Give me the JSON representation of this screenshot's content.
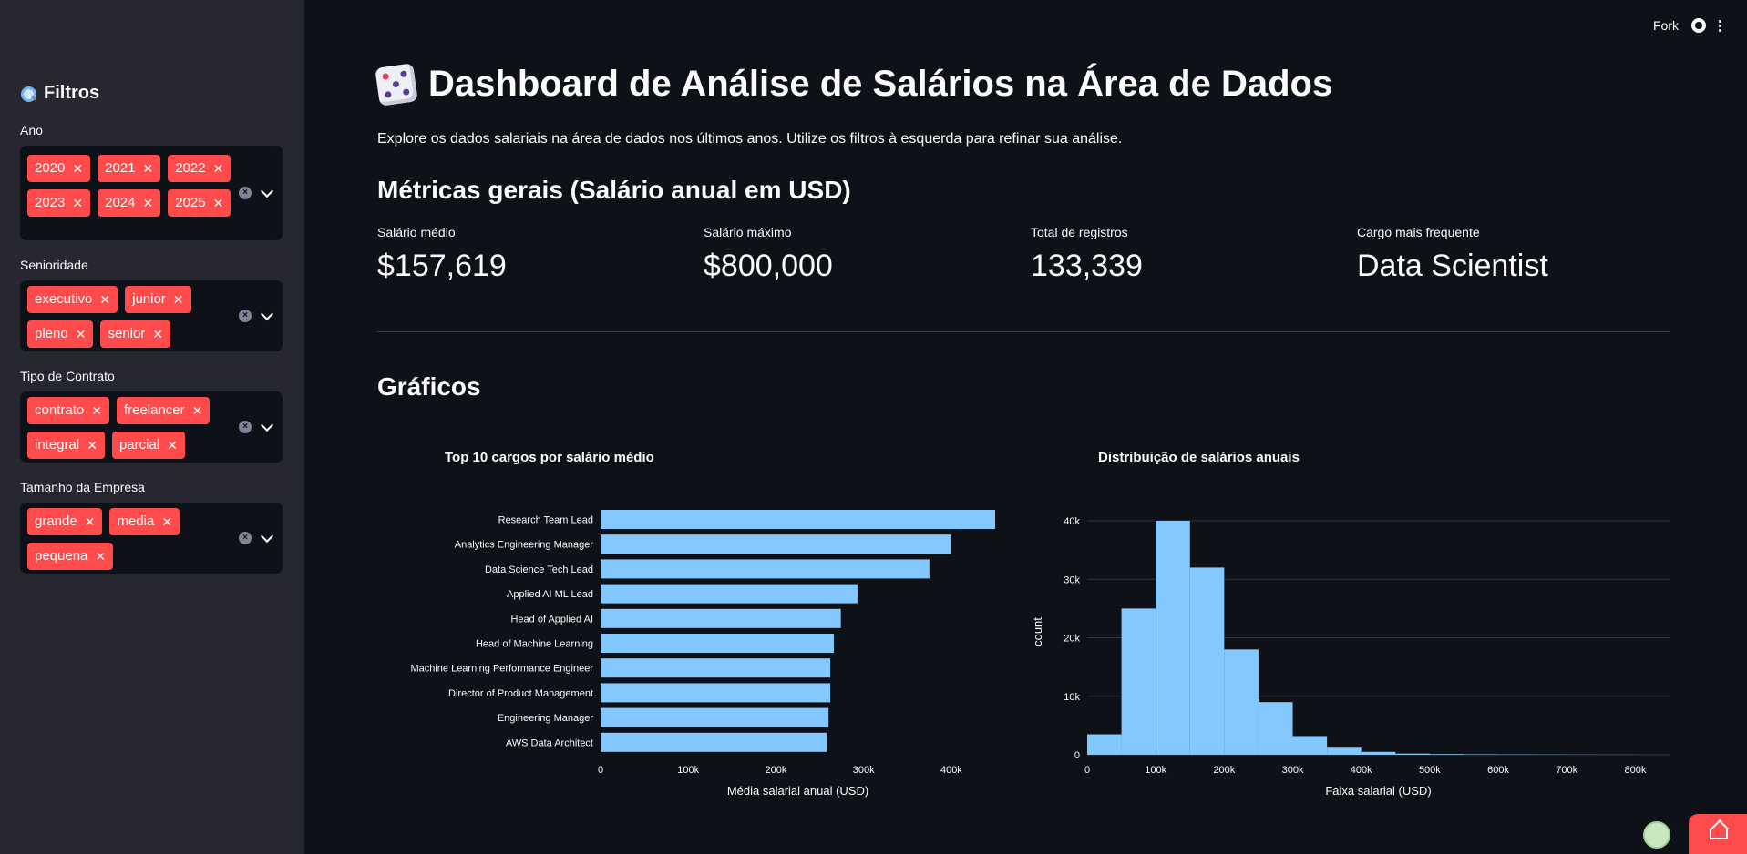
{
  "header": {
    "fork_label": "Fork"
  },
  "sidebar": {
    "title": "Filtros",
    "filters": [
      {
        "label": "Ano",
        "tags": [
          "2020",
          "2021",
          "2022",
          "2023",
          "2024",
          "2025"
        ]
      },
      {
        "label": "Senioridade",
        "tags": [
          "executivo",
          "junior",
          "pleno",
          "senior"
        ]
      },
      {
        "label": "Tipo de Contrato",
        "tags": [
          "contrato",
          "freelancer",
          "integral",
          "parcial"
        ]
      },
      {
        "label": "Tamanho da Empresa",
        "tags": [
          "grande",
          "media",
          "pequena"
        ]
      }
    ]
  },
  "main": {
    "title": "Dashboard de Análise de Salários na Área de Dados",
    "subtitle": "Explore os dados salariais na área de dados nos últimos anos. Utilize os filtros à esquerda para refinar sua análise.",
    "metrics_heading": "Métricas gerais (Salário anual em USD)",
    "metrics": [
      {
        "label": "Salário médio",
        "value": "$157,619"
      },
      {
        "label": "Salário máximo",
        "value": "$800,000"
      },
      {
        "label": "Total de registros",
        "value": "133,339"
      },
      {
        "label": "Cargo mais frequente",
        "value": "Data Scientist"
      }
    ],
    "charts_heading": "Gráficos"
  },
  "colors": {
    "accent": "#ff4b4b",
    "bar": "#83c9ff"
  },
  "chart_data": [
    {
      "type": "bar",
      "orientation": "horizontal",
      "title": "Top 10 cargos por salário médio",
      "xlabel": "Média salarial anual (USD)",
      "ylabel": "",
      "categories": [
        "Research Team Lead",
        "Analytics Engineering Manager",
        "Data Science Tech Lead",
        "Applied AI ML Lead",
        "Head of Applied AI",
        "Head of Machine Learning",
        "Machine Learning Performance Engineer",
        "Director of Product Management",
        "Engineering Manager",
        "AWS Data Architect"
      ],
      "values": [
        450000,
        400000,
        375000,
        293000,
        274000,
        266000,
        262000,
        262000,
        260000,
        258000
      ],
      "xlim": [
        0,
        450000
      ],
      "xticks": [
        0,
        100000,
        200000,
        300000,
        400000
      ],
      "xtick_labels": [
        "0",
        "100k",
        "200k",
        "300k",
        "400k"
      ]
    },
    {
      "type": "bar",
      "subtype": "histogram",
      "title": "Distribuição de salários anuais",
      "xlabel": "Faixa salarial (USD)",
      "ylabel": "count",
      "bin_width": 50000,
      "bin_starts": [
        0,
        50000,
        100000,
        150000,
        200000,
        250000,
        300000,
        350000,
        400000,
        450000,
        500000,
        550000,
        600000,
        650000,
        700000,
        750000,
        800000
      ],
      "values": [
        3500,
        25000,
        40000,
        32000,
        18000,
        9000,
        3200,
        1200,
        500,
        200,
        120,
        80,
        60,
        40,
        30,
        20,
        10
      ],
      "xlim": [
        0,
        850000
      ],
      "ylim": [
        0,
        40000
      ],
      "xticks": [
        0,
        100000,
        200000,
        300000,
        400000,
        500000,
        600000,
        700000,
        800000
      ],
      "xtick_labels": [
        "0",
        "100k",
        "200k",
        "300k",
        "400k",
        "500k",
        "600k",
        "700k",
        "800k"
      ],
      "yticks": [
        0,
        10000,
        20000,
        30000,
        40000
      ],
      "ytick_labels": [
        "0",
        "10k",
        "20k",
        "30k",
        "40k"
      ],
      "grid": true
    }
  ]
}
